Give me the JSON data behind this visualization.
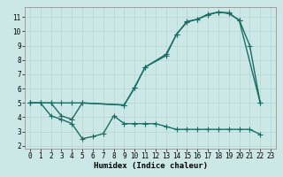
{
  "bg_color": "#cce8e6",
  "grid_color": "#b8d8d6",
  "line_color": "#1a6e64",
  "line_width": 1.0,
  "marker": "+",
  "marker_size": 4,
  "xlabel": "Humidex (Indice chaleur)",
  "xlim": [
    -0.5,
    23.5
  ],
  "ylim": [
    1.8,
    11.7
  ],
  "yticks": [
    2,
    3,
    4,
    5,
    6,
    7,
    8,
    9,
    10,
    11
  ],
  "xticks": [
    0,
    1,
    2,
    3,
    4,
    5,
    6,
    7,
    8,
    9,
    10,
    11,
    12,
    13,
    14,
    15,
    16,
    17,
    18,
    19,
    20,
    21,
    22,
    23
  ],
  "line1_x": [
    0,
    1,
    2,
    3,
    4,
    5,
    9,
    10,
    11,
    13,
    14,
    15,
    16,
    17,
    18,
    19,
    20,
    21,
    22
  ],
  "line1_y": [
    5.0,
    5.0,
    5.0,
    5.0,
    5.0,
    5.0,
    4.85,
    6.1,
    7.5,
    8.4,
    9.8,
    10.7,
    10.85,
    11.2,
    11.35,
    11.25,
    10.8,
    9.0,
    5.0
  ],
  "line2_x": [
    0,
    2,
    3,
    4,
    5,
    9,
    10,
    11,
    13,
    14,
    15,
    16,
    17,
    18,
    19,
    20,
    22
  ],
  "line2_y": [
    5.0,
    5.0,
    4.1,
    3.85,
    5.0,
    4.85,
    6.05,
    7.5,
    8.3,
    9.8,
    10.65,
    10.85,
    11.15,
    11.35,
    11.3,
    10.75,
    5.0
  ],
  "line3_x": [
    0,
    1,
    2,
    3,
    4,
    5,
    6,
    7,
    8,
    9,
    10,
    11,
    12,
    13,
    14,
    15,
    16,
    17,
    18,
    19,
    20,
    21,
    22
  ],
  "line3_y": [
    5.0,
    5.0,
    4.1,
    3.85,
    3.55,
    2.5,
    2.65,
    2.85,
    4.1,
    3.55,
    3.55,
    3.55,
    3.55,
    3.35,
    3.15,
    3.15,
    3.15,
    3.15,
    3.15,
    3.15,
    3.15,
    3.15,
    2.8
  ]
}
